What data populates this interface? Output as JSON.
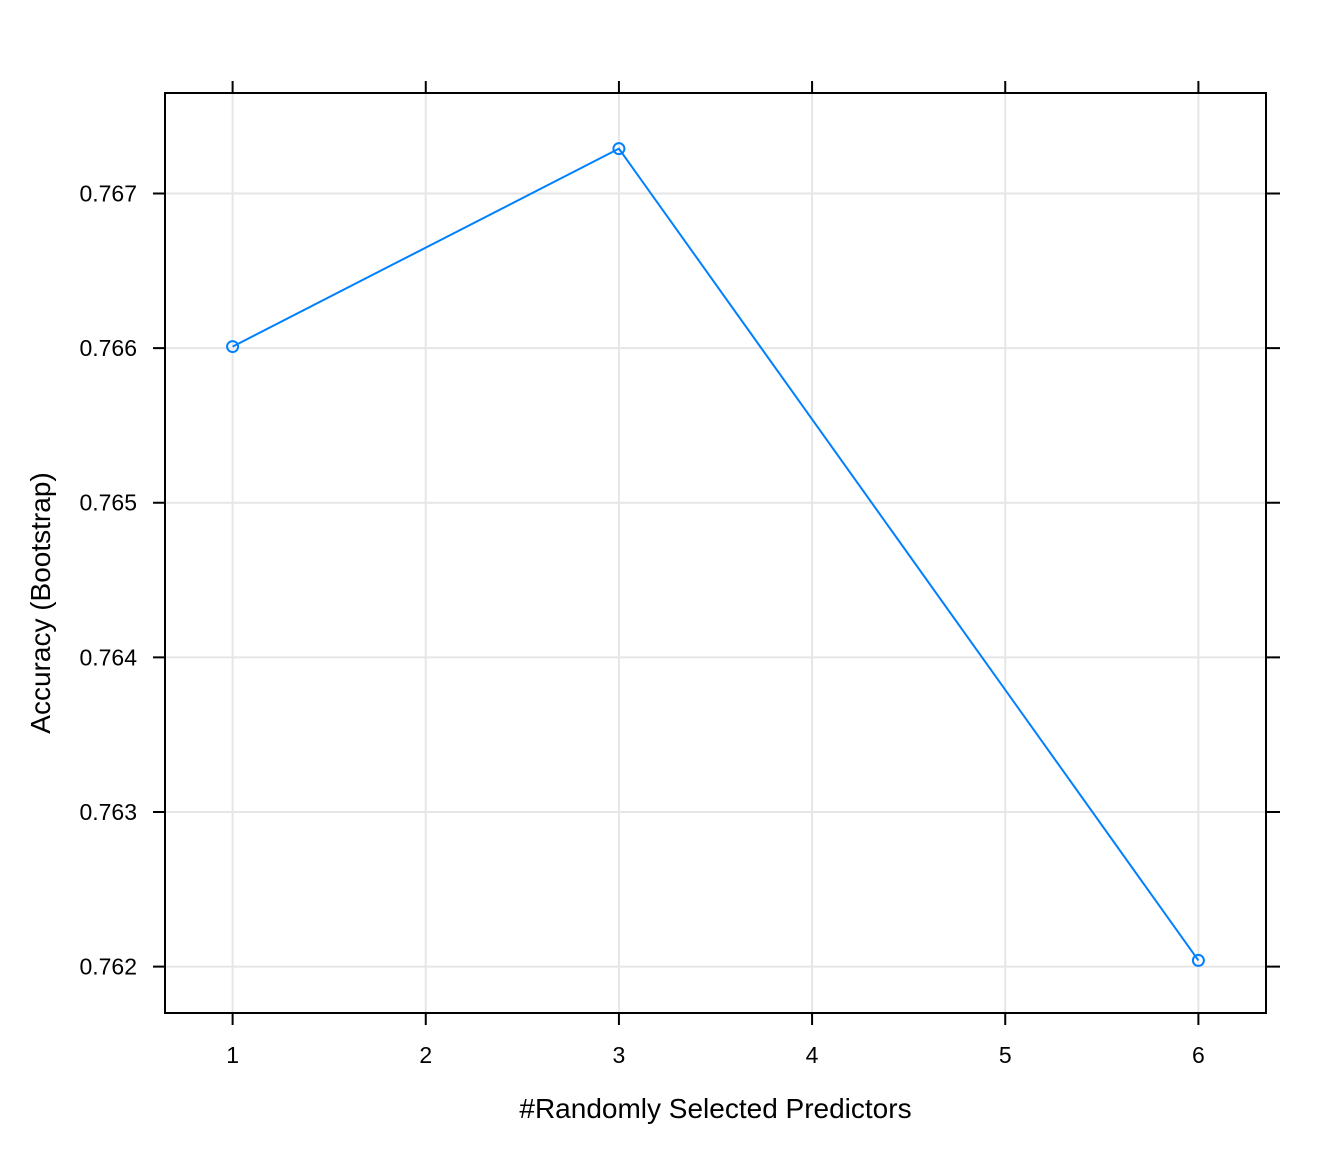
{
  "chart_data": {
    "type": "line",
    "title": "",
    "xlabel": "#Randomly Selected Predictors",
    "ylabel": "Accuracy (Bootstrap)",
    "x": [
      1,
      3,
      6
    ],
    "series": [
      {
        "values": [
          0.76601,
          0.76729,
          0.76204
        ]
      }
    ],
    "xlim": [
      0.65,
      6.35
    ],
    "ylim": [
      0.7617,
      0.76765
    ],
    "xticks": [
      1,
      2,
      3,
      4,
      5,
      6
    ],
    "xtick_labels": [
      "1",
      "2",
      "3",
      "4",
      "5",
      "6"
    ],
    "yticks": [
      0.762,
      0.763,
      0.764,
      0.765,
      0.766,
      0.767
    ],
    "ytick_labels": [
      "0.762",
      "0.763",
      "0.764",
      "0.765",
      "0.766",
      "0.767"
    ],
    "grid": true,
    "legend": "none",
    "colors": {
      "line": "#0080ff",
      "grid": "#e6e6e6",
      "frame": "#000000"
    }
  }
}
